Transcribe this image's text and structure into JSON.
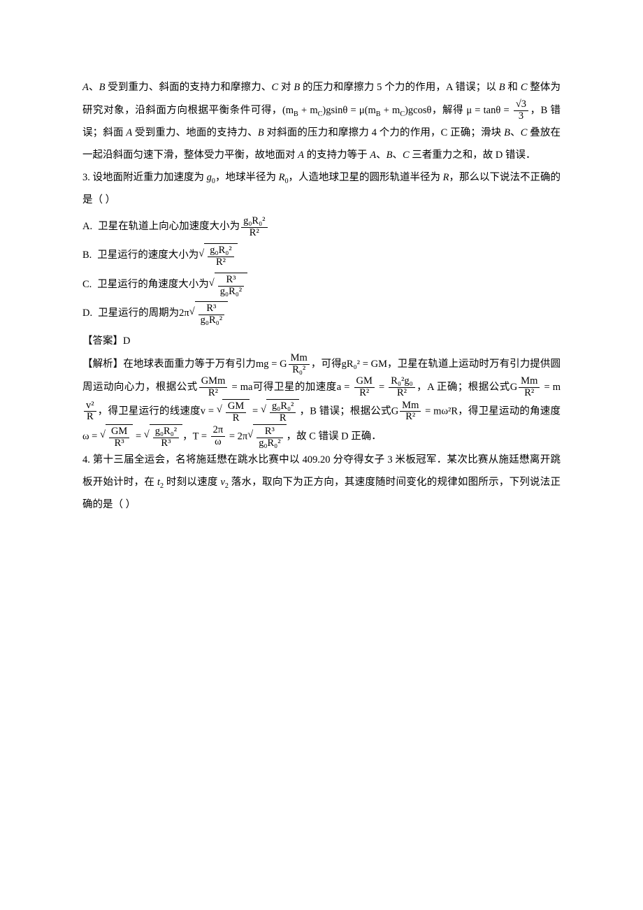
{
  "colors": {
    "text": "#000000",
    "bg": "#ffffff"
  },
  "typography": {
    "body_pt": 11,
    "font": "SimSun / Times New Roman",
    "line_height": 2.2
  },
  "p1_seg1": "A",
  "p1_seg2": "、",
  "p1_seg3": "B",
  "p1_seg4": " 受到重力、斜面的支持力和摩擦力、",
  "p1_seg5": "C",
  "p1_seg6": " 对 ",
  "p1_seg7": "B",
  "p1_seg8": " 的压力和摩擦力 5 个力的作用，A 错误；以 ",
  "p1_seg9": "B",
  "p1_seg10": " 和 ",
  "p1_seg11": "C",
  "p1_seg12": " 整体为研究对象，沿斜面方向根据平衡条件可得，",
  "p1_eq1_text": "(m",
  "p1_eq1_b": "B",
  "p1_eq1_plus": " + m",
  "p1_eq1_c": "C",
  "p1_eq1_gs": ")gsinθ = μ(m",
  "p1_eq1_b2": "B",
  "p1_eq1_plus2": " + m",
  "p1_eq1_c2": "C",
  "p1_eq1_end": ")gcosθ",
  "p1_seg13": "，解得 ",
  "p1_mu": "μ = tanθ = ",
  "p1_frac_num": "√3",
  "p1_frac_den": "3",
  "p1_seg14": "，B 错误；斜面 ",
  "p1_seg15": "A",
  "p1_seg16": " 受到重力、地面的支持力、",
  "p1_seg17": "B",
  "p1_seg18": " 对斜面的压力和摩擦力 4 个力的作用，C 正确；滑块 ",
  "p1_seg19": "B",
  "p1_seg20": "、",
  "p1_seg21": "C",
  "p1_seg22": " 叠放在一起沿斜面匀速下滑，整体受力平衡，故地面对 ",
  "p1_seg23": "A",
  "p1_seg24": " 的支持力等于 ",
  "p1_seg25": "A",
  "p1_seg26": "、",
  "p1_seg27": "B",
  "p1_seg28": "、",
  "p1_seg29": "C",
  "p1_seg30": " 三者重力之和，故 D 错误．",
  "q3_stem1": "3. 设地面附近重力加速度为 ",
  "q3_g0": "g",
  "q3_g0s": "0",
  "q3_stem2": "，地球半径为 ",
  "q3_R0": "R",
  "q3_R0s": "0",
  "q3_stem3": "，人造地球卫星的圆形轨道半径为 ",
  "q3_R": "R",
  "q3_stem4": "，那么以下说法不正确的是（     ）",
  "q3_optA_label": "A.",
  "q3_optA_text": "卫星在轨道上向心加速度大小为",
  "q3_optA_num": "g₀R₀²",
  "q3_optA_den": "R²",
  "q3_optB_label": "B.",
  "q3_optB_text": "卫星运行的速度大小为",
  "q3_optB_num": "g₀R₀²",
  "q3_optB_den": "R²",
  "q3_optC_label": "C.",
  "q3_optC_text": "卫星运行的角速度大小为",
  "q3_optC_num": "R³",
  "q3_optC_den": "g₀R₀²",
  "q3_optD_label": "D.",
  "q3_optD_text": "卫星运行的周期为",
  "q3_optD_2pi": "2π",
  "q3_optD_num": "R³",
  "q3_optD_den": "g₀R₀²",
  "q3_ans": "【答案】D",
  "q3_exp1": "【解析】在地球表面重力等于万有引力",
  "q3_exp_eq1_l": "mg = G",
  "q3_exp_eq1_num": "Mm",
  "q3_exp_eq1_den": "R₀²",
  "q3_exp2": "，可得",
  "q3_exp_eq2": "gR₀² = GM",
  "q3_exp3": "，卫星在轨道上运动时万有引力提供圆周运动向心力，根据公式",
  "q3_exp_eq3_num": "GMm",
  "q3_exp_eq3_den": "R²",
  "q3_exp_eq3_r": " = ma",
  "q3_exp4": "可得卫星的加速度",
  "q3_exp_eq4_l": "a = ",
  "q3_exp_eq4_n1": "GM",
  "q3_exp_eq4_d1": "R²",
  "q3_exp_eq4_eq": " = ",
  "q3_exp_eq4_n2": "R₀²g₀",
  "q3_exp_eq4_d2": "R²",
  "q3_exp5": "，A 正确；根据公式",
  "q3_exp_eq5_l": "G",
  "q3_exp_eq5_n": "Mm",
  "q3_exp_eq5_d": "R²",
  "q3_exp_eq5_r": " = m",
  "q3_exp_eq5_n2": "v²",
  "q3_exp_eq5_d2": "R",
  "q3_exp6": "，得卫星运行的线速度",
  "q3_exp_eq6_l": "v = ",
  "q3_exp_eq6_n1": "GM",
  "q3_exp_eq6_d1": "R",
  "q3_exp_eq6_eq": " = ",
  "q3_exp_eq6_n2": "g₀R₀²",
  "q3_exp_eq6_d2": "R",
  "q3_exp7": "，B 错误；根据公式",
  "q3_exp_eq7_l": "G",
  "q3_exp_eq7_n": "Mm",
  "q3_exp_eq7_d": "R²",
  "q3_exp_eq7_r": " = mω²R",
  "q3_exp8": "，得卫星运动的角速度",
  "q3_exp_eq8_l": "ω = ",
  "q3_exp_eq8_n1": "GM",
  "q3_exp_eq8_d1": "R³",
  "q3_exp_eq8_eq": " = ",
  "q3_exp_eq8_n2": "g₀R₀²",
  "q3_exp_eq8_d2": "R³",
  "q3_exp9": "，",
  "q3_exp_eq9_l": "T = ",
  "q3_exp_eq9_n": "2π",
  "q3_exp_eq9_d": "ω",
  "q3_exp_eq9_eq": " = 2π",
  "q3_exp_eq9_n2": "R³",
  "q3_exp_eq9_d2": "g₀R₀²",
  "q3_exp10": "，故 C 错误 D 正确．",
  "q4_stem1": "4. 第十三届全运会，名将施廷懋在跳水比赛中以 409.20 分夺得女子 3 米板冠军．某次比赛从施廷懋离开跳板开始计时，在 ",
  "q4_t2": "t",
  "q4_t2s": "2",
  "q4_stem2": " 时刻以速度 ",
  "q4_v2": "v",
  "q4_v2s": "2",
  "q4_stem3": " 落水，取向下为正方向，其速度随时间变化的规律如图所示，下列说法正确的是（    ）"
}
